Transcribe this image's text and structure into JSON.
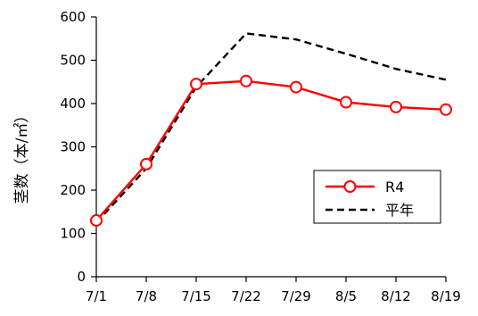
{
  "chart_data": {
    "type": "line",
    "categories": [
      "7/1",
      "7/8",
      "7/15",
      "7/22",
      "7/29",
      "8/5",
      "8/12",
      "8/19"
    ],
    "ylabel": "茎数（本/㎡）",
    "ylim": [
      0,
      600
    ],
    "yticks": [
      "0",
      "100",
      "200",
      "300",
      "400",
      "500",
      "600"
    ],
    "grid": false,
    "legend_position": "right",
    "series": [
      {
        "name": "R4",
        "values": [
          130,
          260,
          445,
          452,
          438,
          403,
          392,
          386
        ],
        "color": "#ff0000",
        "style": "solid-with-circle-markers"
      },
      {
        "name": "平年",
        "values": [
          125,
          250,
          438,
          562,
          548,
          515,
          480,
          455
        ],
        "color": "#000000",
        "style": "dashed"
      }
    ]
  }
}
